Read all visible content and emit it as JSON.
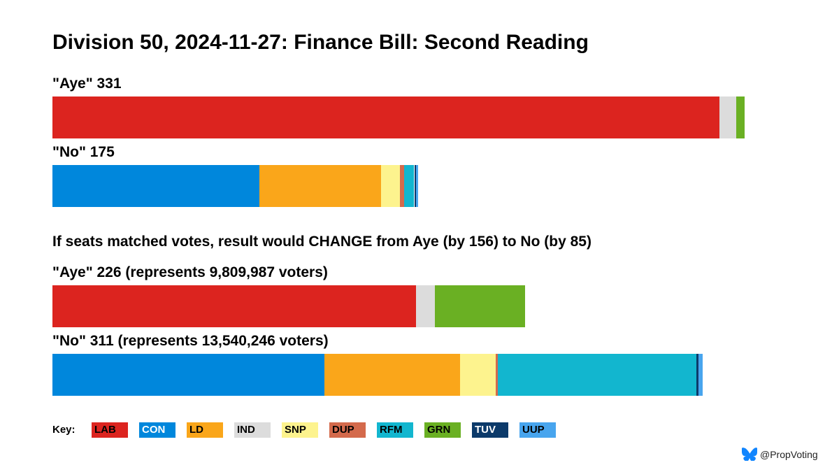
{
  "title": "Division 50, 2024-11-27: Finance Bill: Second Reading",
  "actual": {
    "aye_label": "\"Aye\" 331",
    "no_label": "\"No\" 175"
  },
  "proportional": {
    "headline": "If seats matched votes, result would CHANGE from Aye (by 156) to No (by 85)",
    "aye_label": "\"Aye\" 226 (represents 9,809,987 voters)",
    "no_label": "\"No\" 311 (represents 13,540,246 voters)"
  },
  "colors": {
    "LAB": "#dc241f",
    "CON": "#0087dc",
    "LD": "#faa61a",
    "IND": "#dcdcdc",
    "SNP": "#fdf38e",
    "DUP": "#d46a4c",
    "RFM": "#12b6cf",
    "GRN": "#6ab023",
    "TUV": "#0c3a6a",
    "UUP": "#48a5ee"
  },
  "key": {
    "title": "Key:",
    "items": [
      {
        "party": "LAB",
        "label": "LAB",
        "text_color": "#000000"
      },
      {
        "party": "CON",
        "label": "CON",
        "text_color": "#ffffff"
      },
      {
        "party": "LD",
        "label": "LD",
        "text_color": "#000000"
      },
      {
        "party": "IND",
        "label": "IND",
        "text_color": "#000000"
      },
      {
        "party": "SNP",
        "label": "SNP",
        "text_color": "#000000"
      },
      {
        "party": "DUP",
        "label": "DUP",
        "text_color": "#000000"
      },
      {
        "party": "RFM",
        "label": "RFM",
        "text_color": "#000000"
      },
      {
        "party": "GRN",
        "label": "GRN",
        "text_color": "#000000"
      },
      {
        "party": "TUV",
        "label": "TUV",
        "text_color": "#ffffff"
      },
      {
        "party": "UUP",
        "label": "UUP",
        "text_color": "#000000"
      }
    ]
  },
  "credit": {
    "icon": "butterfly-icon",
    "text": "@PropVoting"
  },
  "chart_data": {
    "type": "bar",
    "orientation": "horizontal-stacked",
    "title": "Division 50, 2024-11-27: Finance Bill: Second Reading",
    "xlim": [
      0,
      346
    ],
    "bars": [
      {
        "id": "actual_aye",
        "total": 331,
        "segments": [
          {
            "party": "LAB",
            "value": 319
          },
          {
            "party": "IND",
            "value": 8
          },
          {
            "party": "GRN",
            "value": 4
          }
        ]
      },
      {
        "id": "actual_no",
        "total": 175,
        "segments": [
          {
            "party": "CON",
            "value": 99
          },
          {
            "party": "LD",
            "value": 58
          },
          {
            "party": "SNP",
            "value": 9
          },
          {
            "party": "DUP",
            "value": 2
          },
          {
            "party": "RFM",
            "value": 5
          },
          {
            "party": "TUV",
            "value": 1
          },
          {
            "party": "UUP",
            "value": 1
          }
        ]
      },
      {
        "id": "prop_aye",
        "total": 226,
        "segments": [
          {
            "party": "LAB",
            "value": 174
          },
          {
            "party": "IND",
            "value": 9
          },
          {
            "party": "GRN",
            "value": 43
          }
        ]
      },
      {
        "id": "prop_no",
        "total": 311,
        "segments": [
          {
            "party": "CON",
            "value": 130
          },
          {
            "party": "LD",
            "value": 65
          },
          {
            "party": "SNP",
            "value": 17
          },
          {
            "party": "DUP",
            "value": 1
          },
          {
            "party": "RFM",
            "value": 95
          },
          {
            "party": "TUV",
            "value": 1
          },
          {
            "party": "UUP",
            "value": 2
          }
        ]
      }
    ]
  }
}
